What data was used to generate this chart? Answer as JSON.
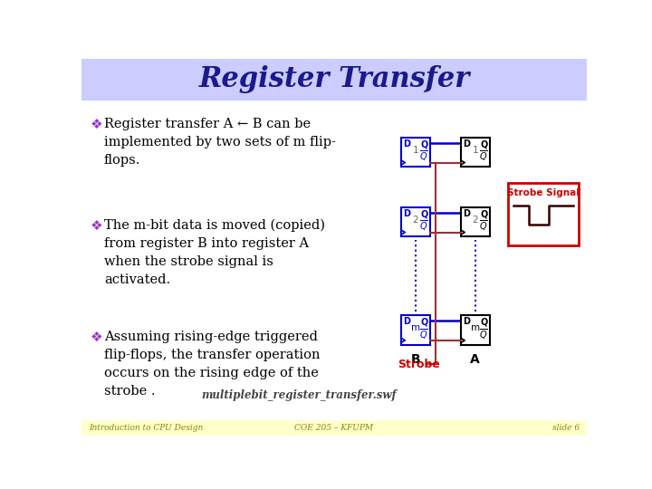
{
  "title": "Register Transfer",
  "title_font": "DejaVu Serif",
  "title_color": "#1a1a8c",
  "title_bg_color": "#ccccff",
  "slide_bg_color": "#ffffff",
  "footer_bg_color": "#ffffcc",
  "footer_left": "Introduction to CPU Design",
  "footer_center": "COE 205 – KFUPM",
  "footer_right": "slide 6",
  "bullet_color": "#9933cc",
  "text_color": "#000000",
  "bullets": [
    "Register transfer A ← B can be\nimplemented by two sets of m flip-\nflops.",
    "The m-bit data is moved (copied)\nfrom register B into register A\nwhen the strobe signal is\nactivated.",
    "Assuming rising-edge triggered\nflip-flops, the transfer operation\noccurs on the rising edge of the\nstrobe ."
  ],
  "swf_text": "multiplebit_register_transfer.swf",
  "b_box_color": "#0000cc",
  "a_box_color": "#000000",
  "conn_line_color": "#0000cc",
  "strobe_line_color": "#993333",
  "strobe_text_color": "#cc0000",
  "dashed_line_color": "#0000cc",
  "strobe_box_color": "#cc0000",
  "strobe_signal_color": "#330000",
  "label_color_num": "#666666",
  "label_color_m": "#0000cc"
}
